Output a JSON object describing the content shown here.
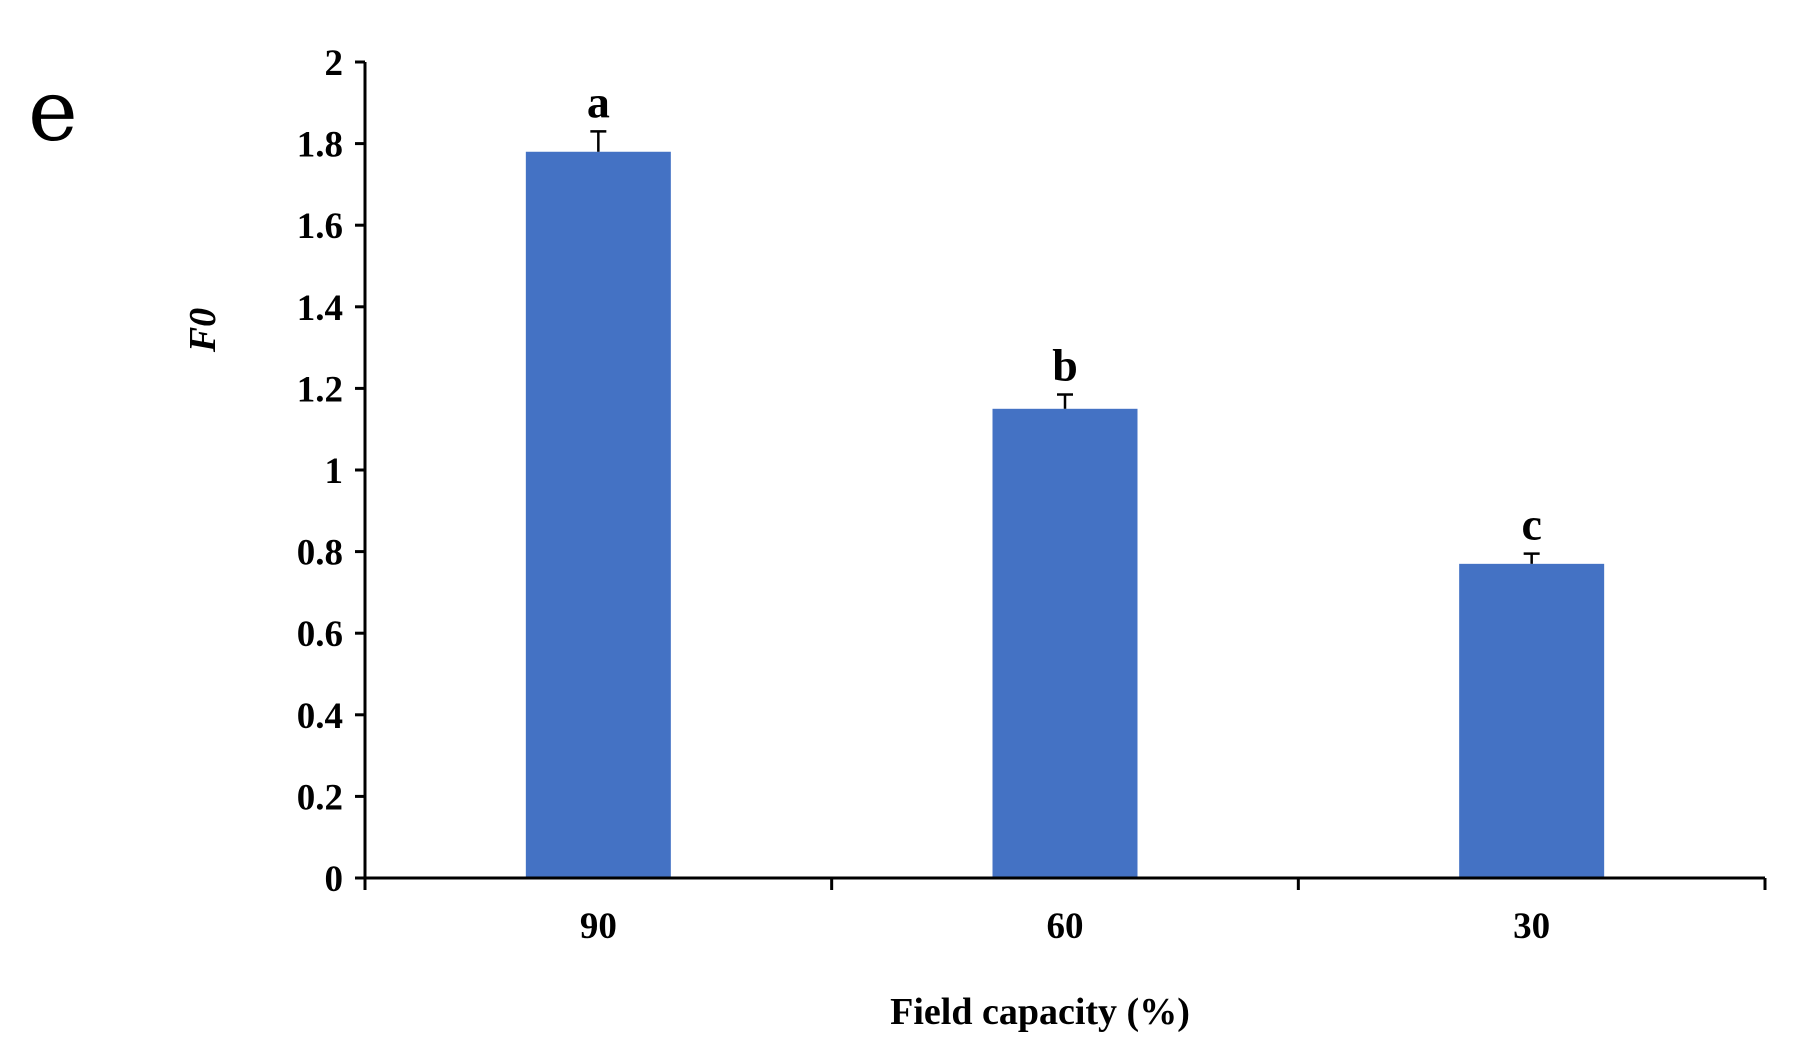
{
  "panel_label": "e",
  "chart_data": {
    "type": "bar",
    "categories": [
      "90",
      "60",
      "30"
    ],
    "values": [
      1.78,
      1.15,
      0.77
    ],
    "errors": [
      0.05,
      0.035,
      0.025
    ],
    "significance_labels": [
      "a",
      "b",
      "c"
    ],
    "xlabel": "Field capacity (%)",
    "ylabel": "F0",
    "ylim": [
      0,
      2
    ],
    "yticks": [
      "0",
      "0.2",
      "0.4",
      "0.6",
      "0.8",
      "1",
      "1.2",
      "1.4",
      "1.6",
      "1.8",
      "2"
    ],
    "bar_color": "#4472C4",
    "grid": false,
    "legend": "none"
  }
}
